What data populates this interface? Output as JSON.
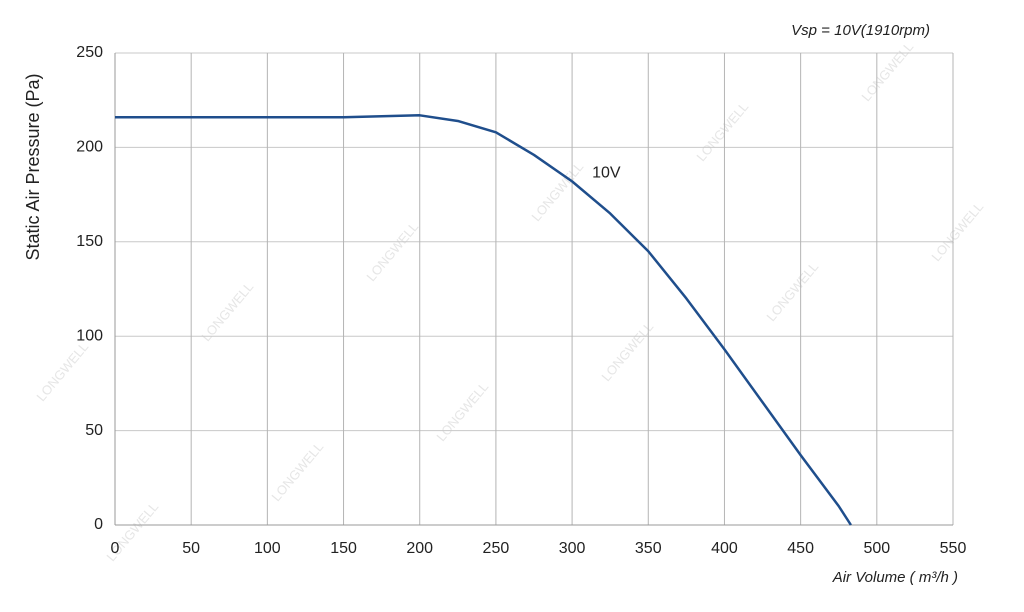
{
  "chart_data": {
    "type": "line",
    "annotation": "Vsp = 10V(1910rpm)",
    "x_label": "Air Volume ( m³/h )",
    "y_label": "Static Air Pressure  (Pa)",
    "watermark": "LONGWELL",
    "x": [
      0,
      50,
      100,
      150,
      175,
      200,
      225,
      250,
      275,
      300,
      325,
      350,
      375,
      400,
      425,
      450,
      475,
      483
    ],
    "series": [
      {
        "name": "10V",
        "color": "#1f4e8c",
        "values": [
          216,
          216,
          216,
          216,
          216.5,
          217,
          214,
          208,
          196,
          182,
          165,
          145,
          120,
          93,
          65,
          37,
          10,
          0
        ]
      }
    ],
    "xlim": [
      0,
      550
    ],
    "xticks": [
      0,
      50,
      100,
      150,
      200,
      250,
      300,
      350,
      400,
      450,
      500,
      550
    ],
    "ylim": [
      0,
      250
    ],
    "yticks": [
      0,
      50,
      100,
      150,
      200,
      250
    ],
    "grid": true
  }
}
